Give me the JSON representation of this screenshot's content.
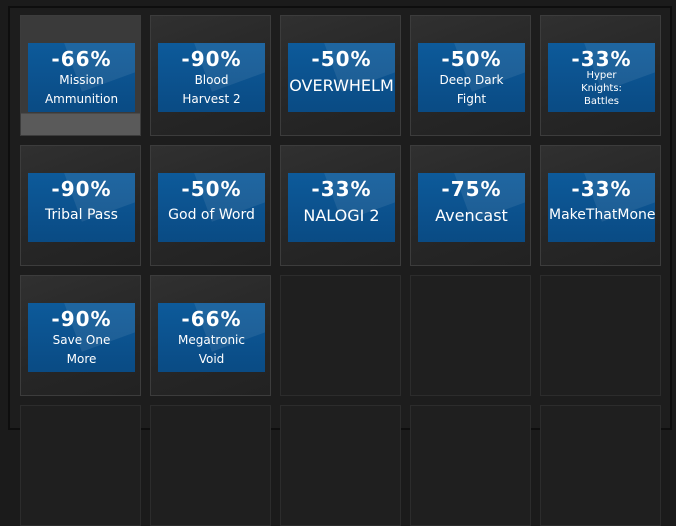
{
  "tiles": [
    {
      "discount": "-66%",
      "name": "Mission Ammunition"
    },
    {
      "discount": "-90%",
      "name": "Blood Harvest 2"
    },
    {
      "discount": "-50%",
      "name": "OVERWHELM"
    },
    {
      "discount": "-50%",
      "name": "Deep Dark Fight"
    },
    {
      "discount": "-33%",
      "name": "Hyper Knights: Battles"
    },
    {
      "discount": "-90%",
      "name": "Tribal Pass"
    },
    {
      "discount": "-50%",
      "name": "God of Word"
    },
    {
      "discount": "-33%",
      "name": "NALOGI 2"
    },
    {
      "discount": "-75%",
      "name": "Avencast"
    },
    {
      "discount": "-33%",
      "name": "MakeThatMoney"
    },
    {
      "discount": "-90%",
      "name": "Save One More"
    },
    {
      "discount": "-66%",
      "name": "Megatronic Void"
    }
  ]
}
